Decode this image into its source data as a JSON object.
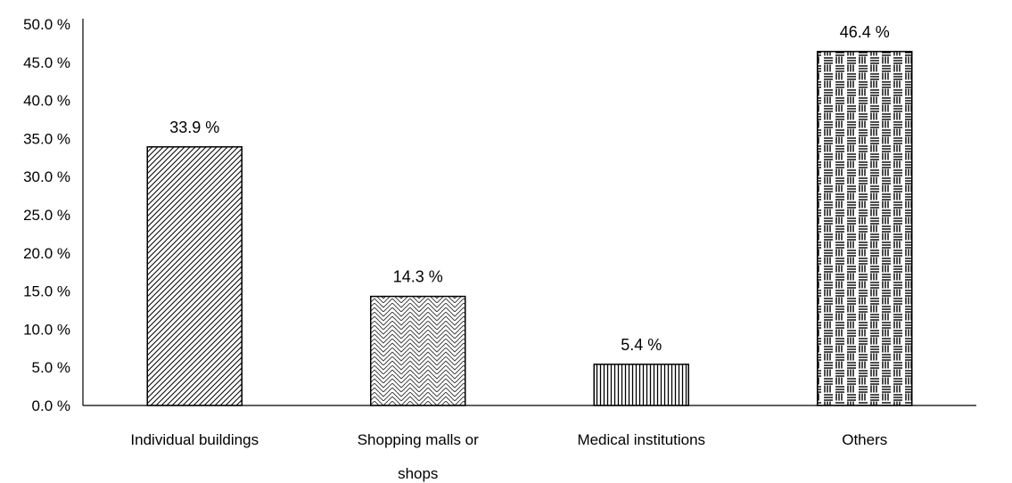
{
  "chart_data": {
    "type": "bar",
    "categories": [
      [
        "Individual buildings"
      ],
      [
        "Shopping malls or",
        "shops"
      ],
      [
        "Medical institutions"
      ],
      [
        "Others"
      ]
    ],
    "values": [
      33.9,
      14.3,
      5.4,
      46.4
    ],
    "data_labels": [
      "33.9 %",
      "14.3 %",
      "5.4 %",
      "46.4 %"
    ],
    "bar_patterns": [
      "diagonal-hatch",
      "zigzag",
      "vertical-lines",
      "brick-lines"
    ],
    "ylim": [
      0,
      50
    ],
    "yticks": [
      0,
      5,
      10,
      15,
      20,
      25,
      30,
      35,
      40,
      45,
      50
    ],
    "ytick_labels": [
      "0.0 %",
      "5.0 %",
      "10.0 %",
      "15.0 %",
      "20.0 %",
      "25.0 %",
      "30.0 %",
      "35.0 %",
      "40.0 %",
      "45.0 %",
      "50.0 %"
    ],
    "grid": false,
    "legend": "none",
    "title": "",
    "xlabel": "",
    "ylabel": "",
    "colors": {
      "bar_fill": "#ffffff",
      "bar_stroke": "#000000",
      "axis": "#000000"
    }
  }
}
